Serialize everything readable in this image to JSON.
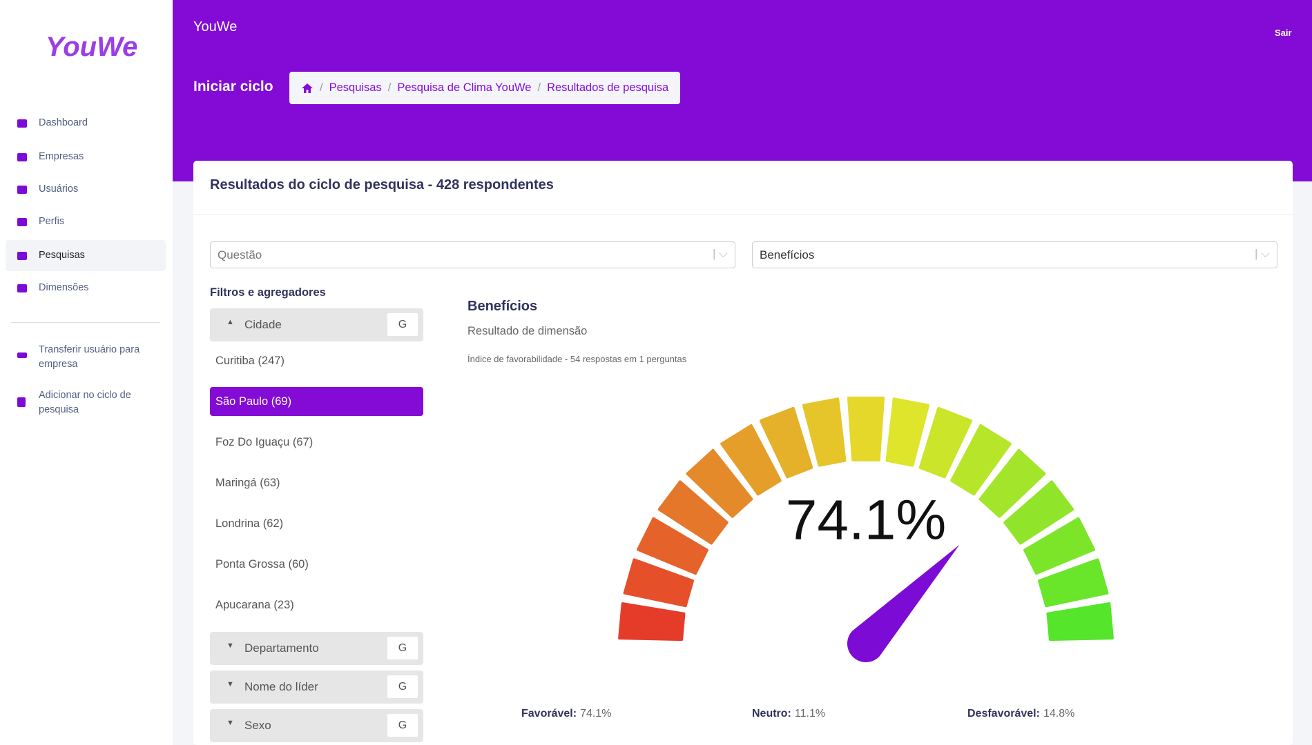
{
  "sidebar": {
    "logo": "YouWe",
    "nav": [
      "Dashboard",
      "Empresas",
      "Usuários",
      "Perfis",
      "Pesquisas",
      "Dimensões"
    ],
    "actions": [
      "Transferir usuário para empresa",
      "Adicionar no ciclo de pesquisa"
    ]
  },
  "header": {
    "brand": "YouWe",
    "logout": "Sair",
    "page_title": "Iniciar ciclo",
    "breadcrumb": [
      "Pesquisas",
      "Pesquisa de Clima YouWe",
      "Resultados de pesquisa"
    ]
  },
  "card": {
    "title": "Resultados do ciclo de pesquisa - 428 respondentes",
    "selects": [
      "Questão",
      "Benefícios"
    ],
    "filters": {
      "title": "Filtros e agregadores",
      "groups": [
        {
          "name": "Cidade",
          "button": "G",
          "items": [
            "Curitiba (247)",
            "São Paulo (69)",
            "Foz Do Iguaçu (67)",
            "Maringá (63)",
            "Londrina (62)",
            "Ponta Grossa (60)",
            "Apucarana (23)"
          ]
        },
        {
          "name": "Departamento",
          "button": "G"
        },
        {
          "name": "Nome do líder",
          "button": "G"
        },
        {
          "name": "Sexo",
          "button": "G"
        }
      ]
    },
    "result": {
      "title": "Benefícios",
      "subtitle": "Resultado de dimensão",
      "note": "Índice de favorabilidade - 54 respostas em 1 perguntas",
      "gauge": {
        "value": 74.1,
        "label": "74.1%",
        "min": 0,
        "max": 100
      },
      "summary": [
        {
          "label": "Favorável:",
          "value": "74.1%"
        },
        {
          "label": "Neutro:",
          "value": "11.1%"
        },
        {
          "label": "Desfavorável:",
          "value": "14.8%"
        }
      ]
    }
  }
}
